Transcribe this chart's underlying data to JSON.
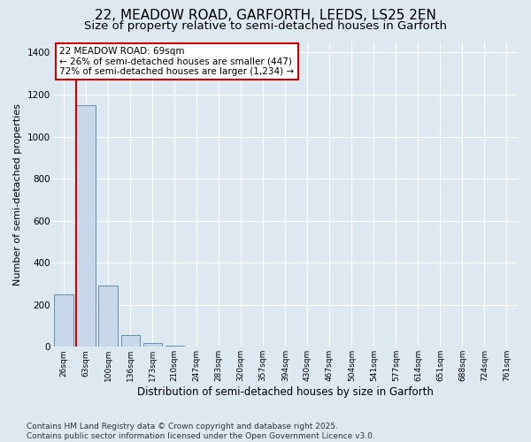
{
  "title_line1": "22, MEADOW ROAD, GARFORTH, LEEDS, LS25 2EN",
  "title_line2": "Size of property relative to semi-detached houses in Garforth",
  "xlabel": "Distribution of semi-detached houses by size in Garforth",
  "ylabel": "Number of semi-detached properties",
  "categories": [
    "26sqm",
    "63sqm",
    "100sqm",
    "136sqm",
    "173sqm",
    "210sqm",
    "247sqm",
    "283sqm",
    "320sqm",
    "357sqm",
    "394sqm",
    "430sqm",
    "467sqm",
    "504sqm",
    "541sqm",
    "577sqm",
    "614sqm",
    "651sqm",
    "688sqm",
    "724sqm",
    "761sqm"
  ],
  "values": [
    250,
    1150,
    290,
    55,
    20,
    5,
    0,
    0,
    0,
    0,
    0,
    0,
    0,
    0,
    0,
    0,
    0,
    0,
    0,
    0,
    0
  ],
  "bar_color": "#c8d8ea",
  "bar_edge_color": "#6090b0",
  "vline_color": "#cc0000",
  "vline_x": 0.575,
  "annotation_text": "22 MEADOW ROAD: 69sqm\n← 26% of semi-detached houses are smaller (447)\n72% of semi-detached houses are larger (1,234) →",
  "annotation_box_facecolor": "#ffffff",
  "annotation_box_edgecolor": "#cc0000",
  "ylim": [
    0,
    1450
  ],
  "yticks": [
    0,
    200,
    400,
    600,
    800,
    1000,
    1200,
    1400
  ],
  "bg_color": "#dde8f0",
  "plot_bg_color": "#dde8f0",
  "grid_color": "#ffffff",
  "footer_line1": "Contains HM Land Registry data © Crown copyright and database right 2025.",
  "footer_line2": "Contains public sector information licensed under the Open Government Licence v3.0.",
  "title1_fontsize": 11,
  "title2_fontsize": 9.5,
  "annotation_fontsize": 7.5,
  "footer_fontsize": 6.5,
  "xlabel_fontsize": 8.5,
  "ylabel_fontsize": 8
}
